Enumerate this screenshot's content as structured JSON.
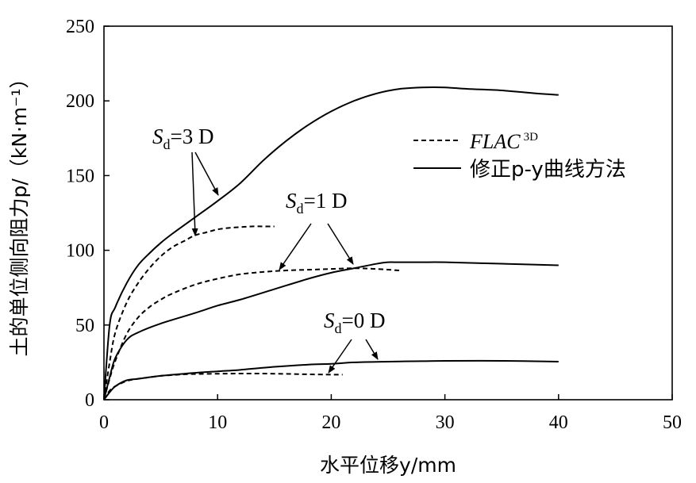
{
  "chart_data": {
    "type": "line",
    "xlabel": "水平位移y/mm",
    "ylabel": "土的单位侧向阻力p/（kN·m⁻¹）",
    "xlim": [
      0,
      50
    ],
    "ylim": [
      0,
      250
    ],
    "xticks": [
      0,
      10,
      20,
      30,
      40,
      50
    ],
    "yticks": [
      0,
      50,
      100,
      150,
      200,
      250
    ],
    "grid": false,
    "legend_position": "right-upper",
    "legend": [
      {
        "style": "dashed",
        "label": "FLAC",
        "label_sup": "3D"
      },
      {
        "style": "solid",
        "label": "修正p-y曲线方法"
      }
    ],
    "series": [
      {
        "group": "Sd=3 D",
        "style": "solid",
        "x": [
          0,
          0.5,
          1,
          2,
          3,
          4,
          5,
          6,
          8,
          10,
          12,
          14,
          16,
          18,
          20,
          22,
          24,
          26,
          28,
          30,
          32,
          35,
          38,
          40
        ],
        "y": [
          0,
          50,
          62,
          78,
          90,
          98,
          105,
          111,
          122,
          133,
          145,
          160,
          173,
          184,
          193,
          200,
          205,
          208,
          209,
          209,
          208,
          207,
          205,
          204
        ]
      },
      {
        "group": "Sd=3 D",
        "style": "dashed",
        "x": [
          0,
          0.5,
          1,
          2,
          3,
          4,
          5,
          6,
          7,
          8,
          9,
          10,
          11,
          12,
          13,
          14,
          15
        ],
        "y": [
          0,
          25,
          45,
          65,
          78,
          88,
          96,
          102,
          106,
          110,
          112,
          114,
          115,
          115.5,
          116,
          116,
          116
        ]
      },
      {
        "group": "Sd=1 D",
        "style": "solid",
        "x": [
          0,
          0.5,
          1,
          2,
          3,
          5,
          8,
          10,
          12,
          15,
          18,
          20,
          22,
          24,
          25,
          26,
          28,
          30,
          35,
          40
        ],
        "y": [
          0,
          15,
          28,
          40,
          45,
          51,
          58,
          63,
          67,
          74,
          81,
          85,
          88,
          91,
          92,
          92,
          92,
          92,
          91,
          90
        ]
      },
      {
        "group": "Sd=1 D",
        "style": "dashed",
        "x": [
          0,
          0.5,
          1,
          2,
          3,
          4,
          5,
          6,
          8,
          10,
          12,
          14,
          16,
          18,
          20,
          22,
          24,
          26
        ],
        "y": [
          0,
          14,
          26,
          44,
          55,
          62,
          67,
          71,
          77,
          81,
          84,
          85.5,
          86.5,
          87,
          87.5,
          88,
          87.5,
          86.5
        ]
      },
      {
        "group": "Sd=0 D",
        "style": "solid",
        "x": [
          0,
          0.5,
          1,
          2,
          3,
          5,
          8,
          10,
          12,
          15,
          18,
          20,
          22,
          25,
          28,
          30,
          35,
          40
        ],
        "y": [
          0,
          5,
          9,
          13,
          14,
          16,
          18,
          19,
          20,
          22,
          23.5,
          24,
          25,
          25.5,
          25.8,
          26,
          26,
          25.5
        ]
      },
      {
        "group": "Sd=0 D",
        "style": "dashed",
        "x": [
          0,
          0.5,
          1,
          2,
          3,
          4,
          5,
          6,
          7,
          8,
          10,
          12,
          14,
          16,
          18,
          20,
          21
        ],
        "y": [
          0,
          6,
          9,
          12.5,
          14,
          15,
          16,
          16.5,
          17,
          17.2,
          17.4,
          17.5,
          17.5,
          17.3,
          17,
          16.8,
          16.8
        ]
      }
    ],
    "annotations": [
      {
        "id": "sd3",
        "main": "S",
        "sub": "d",
        "rest": "=3 D"
      },
      {
        "id": "sd1",
        "main": "S",
        "sub": "d",
        "rest": "=1 D"
      },
      {
        "id": "sd0",
        "main": "S",
        "sub": "d",
        "rest": "=0 D"
      }
    ]
  }
}
